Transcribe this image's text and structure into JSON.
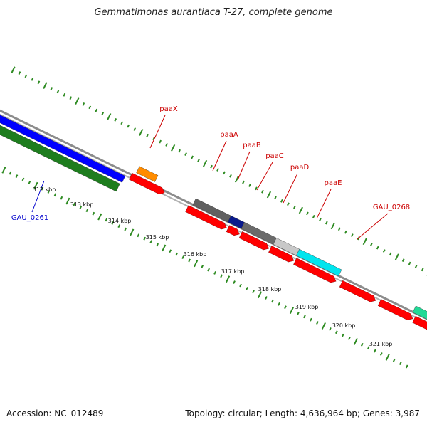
{
  "title": "Gemmatimonas aurantiaca T-27, complete genome",
  "footer": {
    "accession": "Accession: NC_012489",
    "summary": "Topology: circular; Length: 4,636,964 bp; Genes: 3,987"
  },
  "colors": {
    "tick": "#2e8b22",
    "backbone": "#8c8c8c",
    "label_forward": "#cc0000",
    "label_reverse": "#0000cc"
  },
  "scale": {
    "unit": "kbp",
    "labels": [
      "312 kbp",
      "313 kbp",
      "314 kbp",
      "315 kbp",
      "316 kbp",
      "317 kbp",
      "318 kbp",
      "319 kbp",
      "320 kbp",
      "321 kbp"
    ]
  },
  "genes": [
    {
      "name": "paaX",
      "strand": "forward",
      "color": "#ff8c00"
    },
    {
      "name": "paaA",
      "strand": "forward",
      "color": "#606060"
    },
    {
      "name": "paaB",
      "strand": "forward",
      "color": "#0a1a8c"
    },
    {
      "name": "paaC",
      "strand": "forward",
      "color": "#6a6a6a"
    },
    {
      "name": "paaD",
      "strand": "forward",
      "color": "#c8c8c8"
    },
    {
      "name": "paaE",
      "strand": "forward",
      "color": "#00e5ee"
    },
    {
      "name": "GAU_0268",
      "strand": "forward",
      "color": "#21d996"
    },
    {
      "name": "GAU_0261",
      "strand": "reverse",
      "color": "#0000ff"
    }
  ],
  "cds_color": "#ff0000",
  "other_gene_color": "#1e7d1e"
}
